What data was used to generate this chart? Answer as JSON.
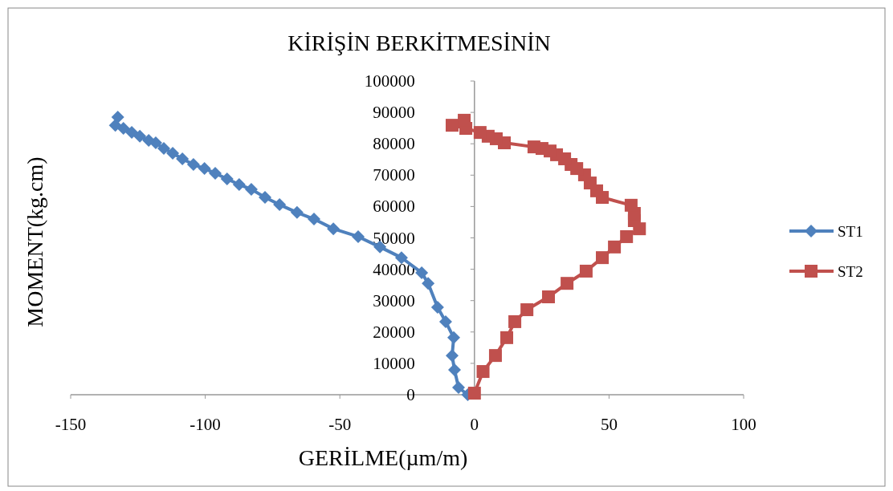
{
  "chart_data": {
    "type": "line",
    "title": "KİRİŞİN BERKİTMESİNİN",
    "xlabel": "GERİLME(µm/m)",
    "ylabel": "MOMENT(kg.cm)",
    "xlim": [
      -150,
      100
    ],
    "xticks": [
      -150,
      -100,
      -50,
      0,
      50,
      100
    ],
    "ylim": [
      0,
      100000
    ],
    "yticks": [
      0,
      10000,
      20000,
      30000,
      40000,
      50000,
      60000,
      70000,
      80000,
      90000,
      100000
    ],
    "legend": "right",
    "line_style": "solid",
    "series": [
      {
        "name": "ST1",
        "color": "#4f81bd",
        "marker": "diamond",
        "x": [
          -2.5,
          -5.9,
          -7.4,
          -8.3,
          -7.7,
          -10.7,
          -13.7,
          -17.2,
          -19.6,
          -27.1,
          -35.1,
          -43.2,
          -52.4,
          -59.6,
          -65.9,
          -72.4,
          -77.8,
          -82.9,
          -87.4,
          -91.9,
          -96.3,
          -100.3,
          -104.4,
          -108.5,
          -112.1,
          -115.4,
          -118.4,
          -121,
          -124.3,
          -127.3,
          -130.4,
          -133.4,
          -132.5
        ],
        "values": [
          0,
          2300,
          7900,
          12500,
          18200,
          23300,
          27900,
          35500,
          38900,
          43700,
          47100,
          50400,
          52900,
          56000,
          58100,
          60600,
          62900,
          65500,
          67000,
          68800,
          70600,
          72100,
          73400,
          75200,
          77000,
          78500,
          80300,
          81100,
          82400,
          83600,
          84900,
          85900,
          88500
        ]
      },
      {
        "name": "ST2",
        "color": "#c0504d",
        "marker": "square",
        "x": [
          0,
          3.2,
          7.8,
          12,
          15,
          19.5,
          27.5,
          34.4,
          41.5,
          47.5,
          52,
          56.5,
          61.3,
          59.4,
          59.4,
          58.2,
          47.5,
          45.4,
          43,
          40.9,
          38,
          35.9,
          33.5,
          30.5,
          28.1,
          25.1,
          22.1,
          11.1,
          8.1,
          5.1,
          2.1,
          -3.2,
          -8.3,
          -3.8
        ],
        "values": [
          500,
          7400,
          12500,
          18200,
          23300,
          27100,
          31200,
          35500,
          39400,
          43700,
          47100,
          50400,
          52900,
          55500,
          57800,
          60400,
          62900,
          65000,
          67500,
          70100,
          72100,
          73400,
          75200,
          76500,
          77700,
          78500,
          79000,
          80300,
          81600,
          82400,
          83600,
          84900,
          85900,
          87500
        ]
      }
    ]
  }
}
